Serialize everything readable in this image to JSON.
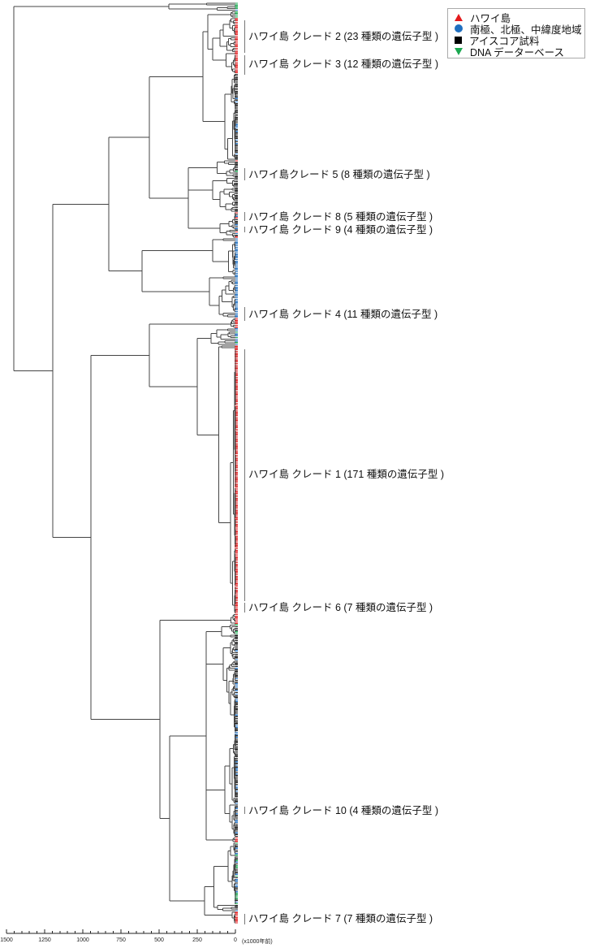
{
  "legend": {
    "items": [
      {
        "label": "ハワイ島",
        "symbol": "triangle-up",
        "color": "#e41a1c"
      },
      {
        "label": "南極、北極、中緯度地域",
        "symbol": "circle",
        "color": "#1f6fc0"
      },
      {
        "label": "アイスコア試料",
        "symbol": "square",
        "color": "#000000"
      },
      {
        "label": "DNA データーベース",
        "symbol": "triangle-down",
        "color": "#1aa850"
      }
    ]
  },
  "clade_labels": [
    {
      "id": "2",
      "text": "ハワイ島 クレード 2 (23 種類の遺伝子型 )"
    },
    {
      "id": "3",
      "text": "ハワイ島 クレード 3 (12 種類の遺伝子型 )"
    },
    {
      "id": "5",
      "text": "ハワイ島クレード 5 (8 種類の遺伝子型 )"
    },
    {
      "id": "8",
      "text": "ハワイ島 クレード 8 (5 種類の遺伝子型 )"
    },
    {
      "id": "9",
      "text": "ハワイ島 クレード 9 (4 種類の遺伝子型 )"
    },
    {
      "id": "4",
      "text": "ハワイ島 クレード 4 (11 種類の遺伝子型 )"
    },
    {
      "id": "1",
      "text": "ハワイ島 クレード 1 (171 種類の遺伝子型 )"
    },
    {
      "id": "6",
      "text": "ハワイ島 クレード 6 (7 種類の遺伝子型 )"
    },
    {
      "id": "10",
      "text": "ハワイ島 クレード 10 (4 種類の遺伝子型 )"
    },
    {
      "id": "7",
      "text": "ハワイ島 クレード 7 (7 種類の遺伝子型 )"
    }
  ],
  "axis": {
    "ticks": [
      "1500",
      "1250",
      "1000",
      "750",
      "500",
      "250",
      "0"
    ],
    "tick_values": [
      1500,
      1250,
      1000,
      750,
      500,
      250,
      0
    ],
    "range": [
      1500,
      0
    ],
    "unit": "(x1000年前)"
  },
  "leaf_colors": {
    "r": "#e41a1c",
    "b": "#1f6fc0",
    "k": "#111111",
    "g": "#1aa850"
  },
  "tree": {
    "h": 1452,
    "c": [
      {
        "h": 436,
        "c": [
          {
            "n": 2,
            "h": 190,
            "col": "g"
          },
          {
            "n": 3,
            "h": 120,
            "col": "bg"
          }
        ]
      },
      {
        "h": 1197,
        "c": [
          {
            "h": 830,
            "c": [
              {
                "h": 564,
                "c": [
                  {
                    "h": 213,
                    "c": [
                      {
                        "h": 181,
                        "c": [
                          {
                            "n": 4,
                            "h": 30,
                            "col": "bg"
                          },
                          {
                            "h": 150,
                            "c": [
                              {
                                "n": 20,
                                "h": 100,
                                "col": "r"
                              },
                              {
                                "n": 12,
                                "h": 60,
                                "col": "r"
                              }
                            ]
                          }
                        ]
                      },
                      {
                        "n": 50,
                        "h": 70,
                        "col": "kkkb"
                      }
                    ]
                  },
                  {
                    "h": 309,
                    "c": [
                      {
                        "n": 10,
                        "h": 120,
                        "col": "grk"
                      },
                      {
                        "n": 20,
                        "h": 150,
                        "col": "k"
                      },
                      {
                        "n": 15,
                        "h": 100,
                        "col": "rkb"
                      }
                    ]
                  }
                ]
              },
              {
                "h": 612,
                "c": [
                  {
                    "n": 22,
                    "h": 150,
                    "col": "b"
                  },
                  {
                    "n": 24,
                    "h": 170,
                    "col": "b"
                  }
                ]
              }
            ]
          },
          {
            "h": 947,
            "c": [
              {
                "h": 564,
                "c": [
                  {
                    "n": 6,
                    "h": 30,
                    "col": "r"
                  },
                  {
                    "h": 250,
                    "c": [
                      {
                        "n": 10,
                        "h": 160,
                        "col": "gb"
                      },
                      {
                        "n": 155,
                        "h": 110,
                        "col": "r"
                      }
                    ]
                  }
                ]
              },
              {
                "h": 495,
                "c": [
                  {
                    "n": 6,
                    "h": 30,
                    "col": "r"
                  },
                  {
                    "h": 431,
                    "c": [
                      {
                        "h": 191,
                        "c": [
                          {
                            "n": 8,
                            "h": 90,
                            "col": "kg"
                          },
                          {
                            "n": 55,
                            "h": 80,
                            "col": "kkb"
                          },
                          {
                            "n": 60,
                            "h": 70,
                            "col": "kkkb"
                          },
                          {
                            "n": 3,
                            "h": 15,
                            "col": "r"
                          }
                        ]
                      },
                      {
                        "h": 202,
                        "c": [
                          {
                            "n": 40,
                            "h": 140,
                            "col": "kbg"
                          },
                          {
                            "n": 7,
                            "h": 20,
                            "col": "r"
                          }
                        ]
                      }
                    ]
                  }
                ]
              }
            ]
          }
        ]
      }
    ]
  }
}
